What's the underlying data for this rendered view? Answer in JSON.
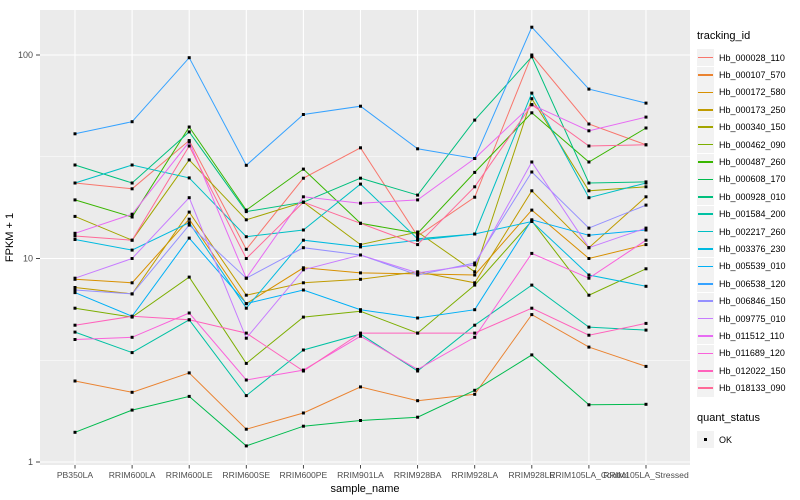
{
  "chart_data": {
    "type": "line",
    "title": "",
    "xlabel": "sample_name",
    "ylabel": "FPKM + 1",
    "y_scale": "log10",
    "y_ticks": [
      1,
      10,
      100
    ],
    "y_minor_gridlines": [
      3.162,
      31.62
    ],
    "ylim": [
      1,
      160
    ],
    "panel_background": "#EBEBEB",
    "gridline_color": "#FFFFFF",
    "axis_text_color": "#4D4D4D",
    "point_marker": {
      "shape": "square",
      "color": "#000000",
      "size": 3
    },
    "legend_titles": {
      "series": "tracking_id",
      "points": "quant_status"
    },
    "quant_status_items": [
      {
        "label": "OK"
      }
    ],
    "categories": [
      "PB350LA",
      "RRIM600LA",
      "RRIM600LE",
      "RRIM600SE",
      "RRIM600PE",
      "RRIM901LA",
      "RRIM928BA",
      "RRIM928LA",
      "RRIM928LE",
      "RRIM105LA_Control",
      "RRIM105LA_Stressed"
    ],
    "series": [
      {
        "name": "Hb_000028_110",
        "color": "#F8766D",
        "values": [
          23.5,
          22.0,
          38.0,
          11.1,
          24.8,
          35.0,
          12.9,
          20.0,
          100.0,
          45.8,
          36.2
        ]
      },
      {
        "name": "Hb_000107_570",
        "color": "#EA8331",
        "values": [
          2.5,
          2.2,
          2.74,
          1.45,
          1.74,
          2.34,
          2.0,
          2.15,
          5.3,
          3.67,
          2.95
        ]
      },
      {
        "name": "Hb_000172_580",
        "color": "#D89000",
        "values": [
          7.9,
          7.6,
          15.6,
          6.0,
          9.0,
          8.5,
          8.4,
          8.3,
          17.3,
          10.0,
          11.7
        ]
      },
      {
        "name": "Hb_000173_250",
        "color": "#C09B00",
        "values": [
          7.2,
          6.7,
          16.9,
          6.6,
          7.6,
          7.9,
          8.6,
          7.6,
          21.5,
          11.3,
          20.1
        ]
      },
      {
        "name": "Hb_000340_150",
        "color": "#A3A500",
        "values": [
          16.1,
          12.3,
          30.5,
          15.5,
          18.9,
          11.7,
          13.5,
          8.6,
          61.0,
          21.5,
          22.5
        ]
      },
      {
        "name": "Hb_000462_090",
        "color": "#7CAE00",
        "values": [
          5.7,
          5.15,
          8.1,
          3.05,
          5.15,
          5.5,
          4.3,
          7.4,
          15.3,
          6.6,
          8.9
        ]
      },
      {
        "name": "Hb_000487_260",
        "color": "#39B600",
        "values": [
          19.4,
          16.0,
          44.3,
          17.3,
          27.5,
          14.9,
          13.3,
          26.5,
          52.0,
          29.8,
          43.8
        ]
      },
      {
        "name": "Hb_000608_170",
        "color": "#00BB4E",
        "values": [
          1.4,
          1.8,
          2.1,
          1.2,
          1.5,
          1.6,
          1.66,
          2.25,
          3.36,
          1.91,
          1.92
        ]
      },
      {
        "name": "Hb_000928_010",
        "color": "#00BF7D",
        "values": [
          28.8,
          23.5,
          41.9,
          17.0,
          18.9,
          24.8,
          20.5,
          47.9,
          98.0,
          23.5,
          23.8
        ]
      },
      {
        "name": "Hb_001584_200",
        "color": "#00C1A3",
        "values": [
          4.35,
          3.45,
          5.0,
          2.12,
          3.55,
          4.25,
          2.8,
          4.7,
          7.4,
          4.6,
          4.45
        ]
      },
      {
        "name": "Hb_002217_260",
        "color": "#00BFC4",
        "values": [
          23.5,
          28.8,
          24.9,
          12.8,
          13.8,
          23.2,
          12.5,
          13.2,
          65.0,
          19.9,
          23.5
        ]
      },
      {
        "name": "Hb_003376_230",
        "color": "#00BAE0",
        "values": [
          12.4,
          11.0,
          15.0,
          5.7,
          12.3,
          11.4,
          12.3,
          13.2,
          15.2,
          8.3,
          7.3
        ]
      },
      {
        "name": "Hb_005539_010",
        "color": "#00B0F6",
        "values": [
          6.8,
          5.2,
          12.6,
          6.0,
          7.0,
          5.6,
          5.1,
          5.6,
          15.5,
          13.0,
          13.8
        ]
      },
      {
        "name": "Hb_006538_120",
        "color": "#35A2FF",
        "values": [
          41.0,
          47.0,
          97.0,
          28.7,
          51.0,
          56.0,
          34.6,
          31.0,
          137.0,
          68.0,
          58.0
        ]
      },
      {
        "name": "Hb_006846_150",
        "color": "#9590FF",
        "values": [
          7.0,
          6.7,
          14.6,
          8.0,
          11.3,
          10.4,
          8.3,
          9.5,
          26.6,
          14.1,
          18.3
        ]
      },
      {
        "name": "Hb_009775_010",
        "color": "#C77CFF",
        "values": [
          8.0,
          10.0,
          19.9,
          4.06,
          8.8,
          10.4,
          8.5,
          9.3,
          29.8,
          11.3,
          14.1
        ]
      },
      {
        "name": "Hb_011512_110",
        "color": "#E76BF3",
        "values": [
          13.3,
          16.5,
          37.4,
          8.0,
          20.1,
          18.7,
          19.4,
          31.0,
          57.0,
          42.4,
          49.5
        ]
      },
      {
        "name": "Hb_011689_120",
        "color": "#FA62DB",
        "values": [
          4.0,
          4.1,
          5.4,
          2.53,
          2.83,
          4.15,
          2.85,
          4.1,
          10.6,
          8.0,
          12.3
        ]
      },
      {
        "name": "Hb_012022_150",
        "color": "#FF62BC",
        "values": [
          4.7,
          5.2,
          5.0,
          4.3,
          2.8,
          4.3,
          4.3,
          4.3,
          5.7,
          4.2,
          4.8
        ]
      },
      {
        "name": "Hb_018133_090",
        "color": "#FF6A98",
        "values": [
          12.9,
          12.3,
          35.7,
          10.0,
          18.9,
          14.9,
          11.7,
          22.5,
          57.0,
          35.7,
          36.2
        ]
      }
    ]
  }
}
